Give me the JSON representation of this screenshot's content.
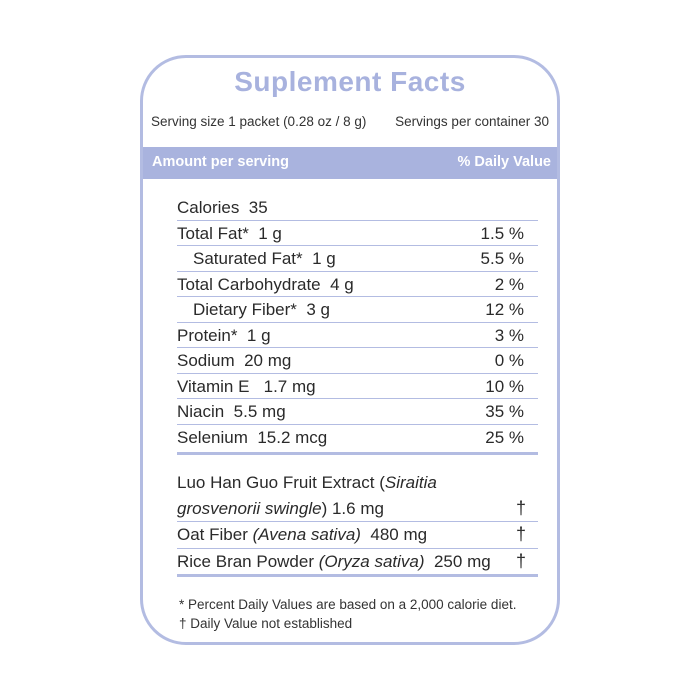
{
  "title": "Suplement Facts",
  "serving_size": "Serving size  1 packet (0.28 oz / 8 g)",
  "servings_per_container": "Servings per container  30",
  "header": {
    "left": "Amount per serving",
    "right": "% Daily Value"
  },
  "rows": [
    {
      "label": "Calories  35",
      "dv": "",
      "indent": false
    },
    {
      "label": "Total Fat*  1 g",
      "dv": "1.5 %",
      "indent": false
    },
    {
      "label": "Saturated Fat*  1 g",
      "dv": "5.5 %",
      "indent": true
    },
    {
      "label": "Total Carbohydrate  4 g",
      "dv": "2 %",
      "indent": false
    },
    {
      "label": "Dietary Fiber*  3 g",
      "dv": "12 %",
      "indent": true
    },
    {
      "label": "Protein*  1 g",
      "dv": "3 %",
      "indent": false
    },
    {
      "label": "Sodium  20 mg",
      "dv": "0 %",
      "indent": false
    },
    {
      "label": "Vitamin E   1.7 mg",
      "dv": "10 %",
      "indent": false
    },
    {
      "label": "Niacin  5.5 mg",
      "dv": "35 %",
      "indent": false
    },
    {
      "label": "Selenium  15.2 mcg",
      "dv": "25 %",
      "indent": false
    }
  ],
  "ingredients": [
    {
      "name": "Luo Han Guo Fruit Extract (",
      "latin": "Siraitia grosvenorii swingle",
      "amount": ") 1.6 mg",
      "dv": "†"
    },
    {
      "name": "Oat Fiber ",
      "latin": "(Avena sativa)",
      "amount": "  480 mg",
      "dv": "†"
    },
    {
      "name": "Rice Bran Powder ",
      "latin": "(Oryza sativa)",
      "amount": "  250 mg",
      "dv": "†"
    }
  ],
  "footnotes": [
    "* Percent Daily Values are based on a 2,000 calorie diet.",
    "†  Daily Value not established"
  ]
}
